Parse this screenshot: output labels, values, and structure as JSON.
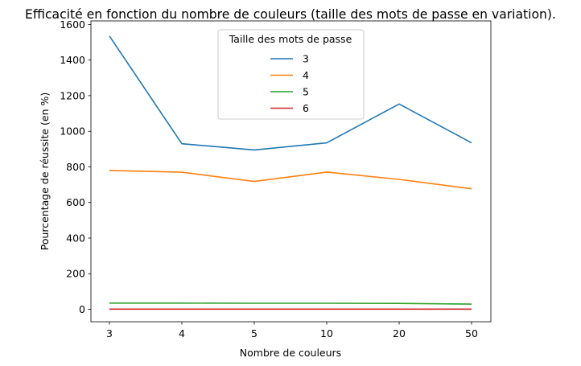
{
  "chart_data": {
    "type": "line",
    "title": "Efficacité en fonction du nombre de couleurs (taille des mots de passe en variation).",
    "xlabel": "Nombre de couleurs",
    "ylabel": "Pourcentage de réussite (en %)",
    "categories": [
      "3",
      "4",
      "5",
      "10",
      "20",
      "50"
    ],
    "ylim": [
      -70,
      1620
    ],
    "yticks": [
      0,
      200,
      400,
      600,
      800,
      1000,
      1200,
      1400,
      1600
    ],
    "grid": false,
    "legend": {
      "title": "Taille des mots de passe",
      "placement": "top-center"
    },
    "series": [
      {
        "name": "3",
        "color": "#1f77b4",
        "values": [
          1535,
          930,
          895,
          935,
          1153,
          935
        ]
      },
      {
        "name": "4",
        "color": "#ff7f0e",
        "values": [
          780,
          770,
          718,
          771,
          730,
          677
        ]
      },
      {
        "name": "5",
        "color": "#2ca02c",
        "values": [
          35,
          35,
          34,
          34,
          33,
          29
        ]
      },
      {
        "name": "6",
        "color": "#d62728",
        "values": [
          1,
          1,
          1,
          1,
          1,
          1
        ]
      }
    ]
  }
}
